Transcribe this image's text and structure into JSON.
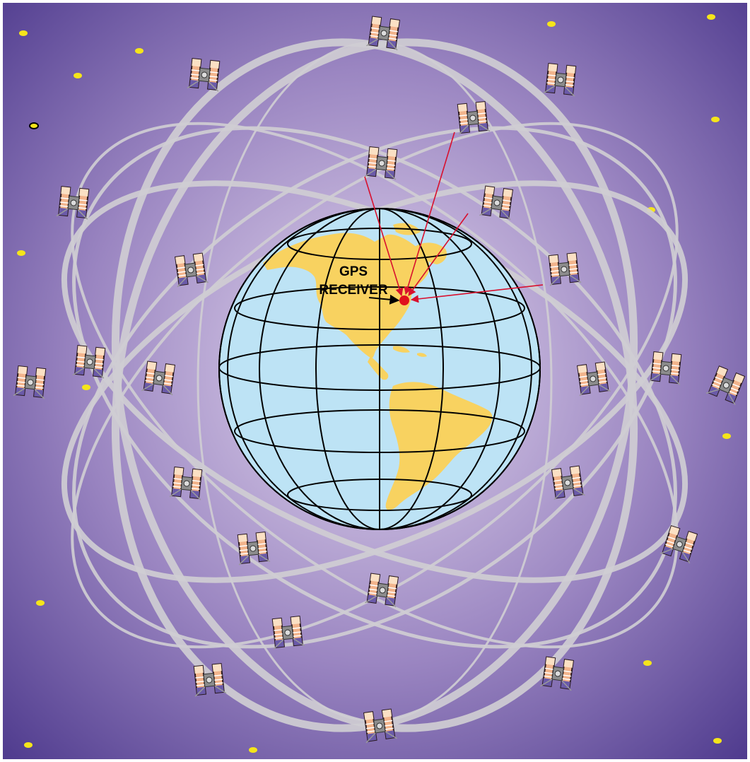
{
  "receiver": {
    "label_line1": "GPS",
    "label_line2": "RECEIVER"
  },
  "colors": {
    "space_center": "#e4d9ef",
    "space_mid": "#9a85c1",
    "space_edge": "#4f3b8e",
    "ocean": "#bde3f5",
    "land": "#f8d260",
    "grid_lines": "#000000",
    "orbit": "#cfcdd2",
    "signal": "#d8102e",
    "receiver_dot": "#e0101c",
    "star": "#f5e51a",
    "panel_warm": "#f2b48c",
    "panel_cool": "#6a5aa8"
  },
  "icons": {
    "satellite": "satellite-icon",
    "star": "star-icon",
    "globe": "globe-icon",
    "receiver": "receiver-dot-icon"
  }
}
